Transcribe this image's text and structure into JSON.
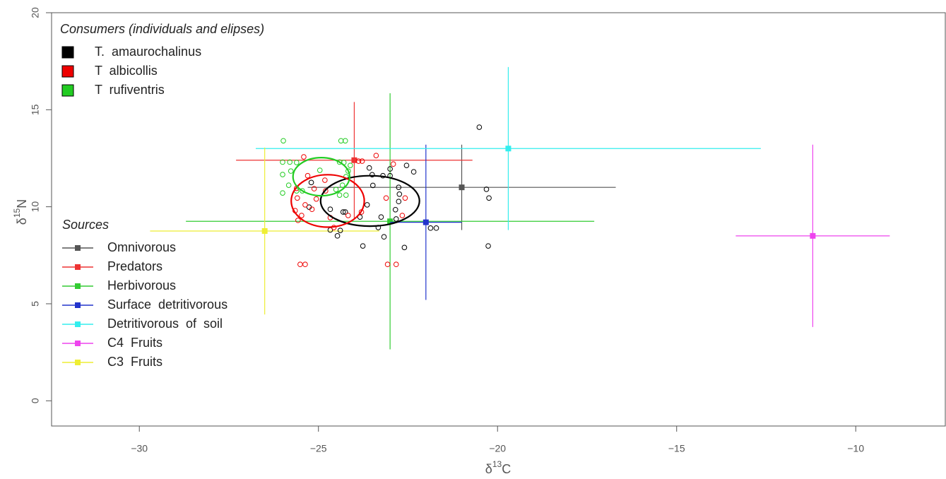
{
  "chart_data": {
    "type": "scatter",
    "xlabel": [
      "δ",
      "13",
      "C"
    ],
    "ylabel": [
      "δ",
      "15",
      "N"
    ],
    "xlim": [
      -32.45,
      -7.5
    ],
    "ylim": [
      -1.3,
      20
    ],
    "xticks": [
      {
        "value": -30,
        "label": "−30"
      },
      {
        "value": -25,
        "label": "−25"
      },
      {
        "value": -20,
        "label": "−20"
      },
      {
        "value": -15,
        "label": "−15"
      },
      {
        "value": -10,
        "label": "−10"
      }
    ],
    "yticks": [
      0,
      5,
      10,
      15,
      20
    ],
    "consumers": {
      "title": "Consumers (individuals and elipses)",
      "series": [
        {
          "name": "T.  amaurochalinus",
          "color": "#000000",
          "x": [
            -20.51,
            -20.31,
            -20.24,
            -20.26,
            -22.54,
            -22.34,
            -23.0,
            -23.0,
            -23.58,
            -23.5,
            -23.2,
            -23.48,
            -22.76,
            -22.74,
            -22.85,
            -22.83,
            -23.25,
            -23.33,
            -23.84,
            -23.76,
            -23.17,
            -22.6,
            -24.67,
            -24.47,
            -24.31,
            -24.67,
            -25.26,
            -25.2,
            -21.87,
            -21.71,
            -24.39,
            -24.25,
            -22.76,
            -23.64
          ],
          "y": [
            14.1,
            10.9,
            10.45,
            7.98,
            12.13,
            11.8,
            11.95,
            11.6,
            12.0,
            11.65,
            11.6,
            11.1,
            11.0,
            10.65,
            9.85,
            9.37,
            9.47,
            8.93,
            9.47,
            7.98,
            8.45,
            7.9,
            8.8,
            8.5,
            9.73,
            9.87,
            9.98,
            11.25,
            8.9,
            8.9,
            8.78,
            9.73,
            10.27,
            10.1
          ],
          "ellipse": {
            "cx": -23.56,
            "cy": 10.3,
            "rx": 1.38,
            "ry": 1.3
          }
        },
        {
          "name": "T  albicollis",
          "color": "#ee0000",
          "x": [
            -25.41,
            -23.39,
            -23.78,
            -22.91,
            -23.11,
            -22.58,
            -24.67,
            -24.57,
            -24.8,
            -25.12,
            -25.18,
            -25.47,
            -25.65,
            -25.51,
            -25.37,
            -23.07,
            -22.83,
            -23.88,
            -24.17,
            -23.8,
            -25.06,
            -25.59,
            -25.37,
            -25.61,
            -25.3,
            -24.82,
            -22.66,
            -25.57
          ],
          "y": [
            12.57,
            12.64,
            12.35,
            12.2,
            10.45,
            10.45,
            9.44,
            8.93,
            10.82,
            10.93,
            9.87,
            9.55,
            9.8,
            7.03,
            7.03,
            7.03,
            7.03,
            12.35,
            9.55,
            9.73,
            10.4,
            10.45,
            10.1,
            10.95,
            11.6,
            11.37,
            9.55,
            9.3
          ],
          "ellipse": {
            "cx": -24.74,
            "cy": 10.3,
            "rx": 1.02,
            "ry": 1.35
          }
        },
        {
          "name": "T  rufiventris",
          "color": "#22cc22",
          "x": [
            -25.98,
            -24.37,
            -24.25,
            -26.0,
            -25.8,
            -25.61,
            -24.41,
            -24.29,
            -24.11,
            -24.17,
            -24.23,
            -26.0,
            -25.77,
            -25.83,
            -26.0,
            -24.33,
            -24.41,
            -24.23,
            -24.96,
            -24.51,
            -25.61,
            -25.45
          ],
          "y": [
            13.4,
            13.4,
            13.4,
            12.3,
            12.3,
            12.28,
            12.3,
            12.28,
            12.13,
            11.84,
            11.55,
            11.66,
            11.84,
            11.11,
            10.71,
            11.11,
            10.6,
            10.6,
            11.88,
            10.89,
            10.82,
            10.82
          ],
          "ellipse": {
            "cx": -24.92,
            "cy": 11.55,
            "rx": 0.79,
            "ry": 0.98
          }
        }
      ]
    },
    "sources": {
      "title": "Sources",
      "series": [
        {
          "name": "Omnivorous",
          "color": "#555555",
          "x": -21.0,
          "y": 11.0,
          "xerr": 4.3,
          "yerr": 2.2
        },
        {
          "name": "Predators",
          "color": "#ee3333",
          "x": -24.0,
          "y": 12.4,
          "xerr": 3.3,
          "yerr": 3.0
        },
        {
          "name": "Herbivorous",
          "color": "#33cc33",
          "x": -23.0,
          "y": 9.25,
          "xerr": 5.7,
          "yerr": 6.6
        },
        {
          "name": "Surface  detritivorous",
          "color": "#2233cc",
          "x": -22.0,
          "y": 9.2,
          "xerr": 1.0,
          "yerr": 4.0
        },
        {
          "name": "Detritivorous  of  soil",
          "color": "#33eeee",
          "x": -19.7,
          "y": 13.0,
          "xerr": 7.05,
          "yerr": 4.2
        },
        {
          "name": "C4  Fruits",
          "color": "#ee44ee",
          "x": -11.2,
          "y": 8.5,
          "xerr": 2.15,
          "yerr": 4.7
        },
        {
          "name": "C3  Fruits",
          "color": "#eeee33",
          "x": -26.5,
          "y": 8.75,
          "xerr": 3.2,
          "yerr": 4.3
        }
      ]
    }
  }
}
